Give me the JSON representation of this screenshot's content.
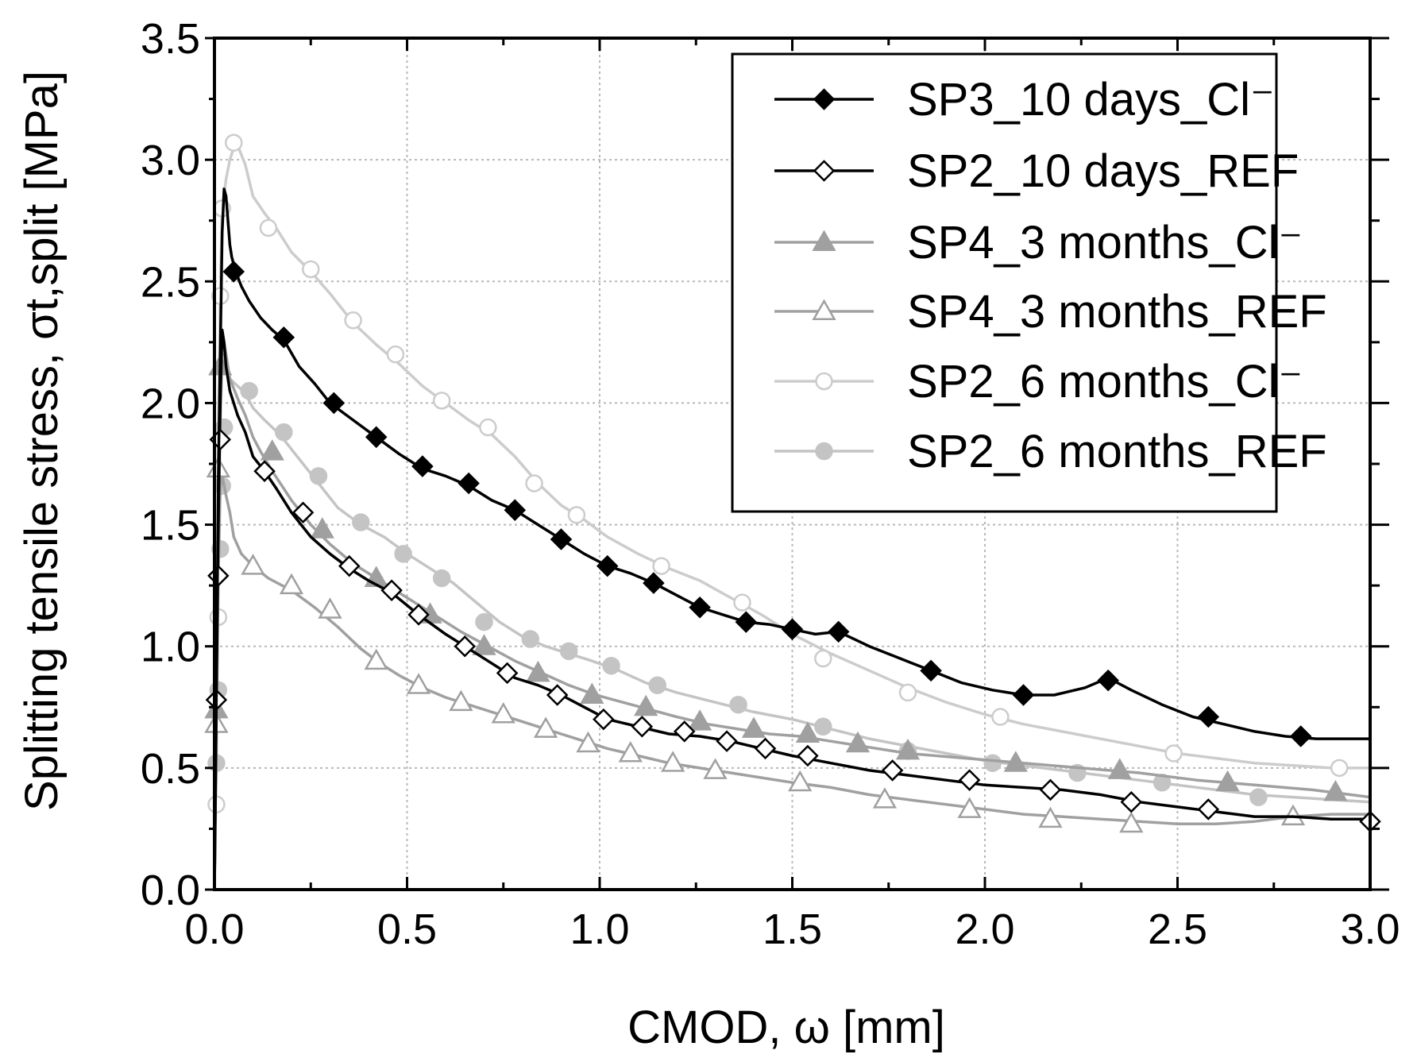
{
  "chart_data": {
    "type": "line",
    "title": "",
    "xlabel": "CMOD, ω [mm]",
    "ylabel": "Splitting tensile stress, σt,split [MPa]",
    "xlim": [
      0,
      3.0
    ],
    "ylim": [
      0,
      3.5
    ],
    "xticks": [
      "0.0",
      "0.5",
      "1.0",
      "1.5",
      "2.0",
      "2.5",
      "3.0"
    ],
    "yticks": [
      "0.0",
      "0.5",
      "1.0",
      "1.5",
      "2.0",
      "2.5",
      "3.0",
      "3.5"
    ],
    "grid": true,
    "legend_position": "top-right",
    "series": [
      {
        "name": "SP3_10 days_Cl⁻",
        "color": "#000000",
        "marker": "diamond",
        "filled": true,
        "x": [
          0,
          0.005,
          0.01,
          0.015,
          0.02,
          0.025,
          0.03,
          0.035,
          0.04,
          0.045,
          0.055,
          0.07,
          0.09,
          0.12,
          0.15,
          0.18,
          0.22,
          0.26,
          0.3,
          0.36,
          0.42,
          0.48,
          0.54,
          0.6,
          0.66,
          0.72,
          0.78,
          0.84,
          0.9,
          0.96,
          1.02,
          1.08,
          1.14,
          1.2,
          1.26,
          1.32,
          1.38,
          1.44,
          1.5,
          1.56,
          1.62,
          1.7,
          1.78,
          1.86,
          1.94,
          2.02,
          2.1,
          2.18,
          2.26,
          2.32,
          2.38,
          2.46,
          2.54,
          2.62,
          2.7,
          2.78,
          2.86,
          2.94,
          3.0
        ],
        "y": [
          0,
          0.8,
          1.7,
          2.2,
          2.7,
          2.88,
          2.85,
          2.75,
          2.65,
          2.6,
          2.54,
          2.48,
          2.42,
          2.35,
          2.3,
          2.26,
          2.15,
          2.08,
          2.0,
          1.93,
          1.86,
          1.79,
          1.73,
          1.7,
          1.66,
          1.6,
          1.56,
          1.5,
          1.44,
          1.38,
          1.33,
          1.3,
          1.26,
          1.21,
          1.16,
          1.13,
          1.1,
          1.09,
          1.07,
          1.05,
          1.06,
          1.0,
          0.95,
          0.9,
          0.85,
          0.82,
          0.8,
          0.8,
          0.83,
          0.87,
          0.82,
          0.76,
          0.71,
          0.68,
          0.65,
          0.63,
          0.62,
          0.62,
          0.62
        ],
        "marker_x": [
          0.05,
          0.18,
          0.31,
          0.42,
          0.54,
          0.66,
          0.78,
          0.9,
          1.02,
          1.14,
          1.26,
          1.38,
          1.5,
          1.62,
          1.86,
          2.1,
          2.32,
          2.58,
          2.82
        ],
        "marker_y": [
          2.54,
          2.27,
          2.0,
          1.86,
          1.74,
          1.67,
          1.56,
          1.44,
          1.33,
          1.26,
          1.16,
          1.1,
          1.07,
          1.06,
          0.9,
          0.8,
          0.86,
          0.71,
          0.63
        ]
      },
      {
        "name": "SP2_10 days_REF",
        "color": "#000000",
        "marker": "diamond",
        "filled": false,
        "x": [
          0,
          0.005,
          0.01,
          0.015,
          0.02,
          0.025,
          0.03,
          0.04,
          0.06,
          0.08,
          0.1,
          0.13,
          0.16,
          0.2,
          0.25,
          0.3,
          0.35,
          0.4,
          0.46,
          0.53,
          0.6,
          0.65,
          0.72,
          0.78,
          0.84,
          0.9,
          0.96,
          1.02,
          1.1,
          1.18,
          1.26,
          1.34,
          1.42,
          1.5,
          1.6,
          1.7,
          1.8,
          1.9,
          2.0,
          2.1,
          2.2,
          2.3,
          2.4,
          2.5,
          2.6,
          2.7,
          2.8,
          2.9,
          3.0
        ],
        "y": [
          0,
          0.8,
          1.5,
          2.0,
          2.3,
          2.25,
          2.15,
          2.05,
          1.95,
          1.88,
          1.78,
          1.72,
          1.65,
          1.55,
          1.45,
          1.38,
          1.32,
          1.27,
          1.22,
          1.13,
          1.05,
          1.0,
          0.93,
          0.87,
          0.84,
          0.8,
          0.75,
          0.7,
          0.67,
          0.64,
          0.63,
          0.61,
          0.58,
          0.55,
          0.52,
          0.49,
          0.47,
          0.45,
          0.43,
          0.42,
          0.41,
          0.39,
          0.36,
          0.34,
          0.32,
          0.3,
          0.3,
          0.29,
          0.29
        ],
        "marker_x": [
          0.005,
          0.01,
          0.015,
          0.13,
          0.23,
          0.35,
          0.46,
          0.53,
          0.65,
          0.76,
          0.89,
          1.01,
          1.11,
          1.22,
          1.33,
          1.43,
          1.54,
          1.76,
          1.96,
          2.17,
          2.38,
          2.58,
          3.0
        ],
        "marker_y": [
          0.78,
          1.29,
          1.85,
          1.72,
          1.55,
          1.33,
          1.23,
          1.13,
          1.0,
          0.89,
          0.8,
          0.7,
          0.67,
          0.65,
          0.61,
          0.58,
          0.55,
          0.49,
          0.45,
          0.41,
          0.36,
          0.33,
          0.28
        ]
      },
      {
        "name": "SP4_3 months_Cl⁻",
        "color": "#a0a0a0",
        "marker": "triangle",
        "filled": true,
        "x": [
          0,
          0.005,
          0.01,
          0.015,
          0.02,
          0.025,
          0.03,
          0.04,
          0.06,
          0.08,
          0.1,
          0.12,
          0.15,
          0.2,
          0.25,
          0.3,
          0.36,
          0.43,
          0.5,
          0.57,
          0.64,
          0.71,
          0.78,
          0.85,
          0.92,
          0.99,
          1.06,
          1.13,
          1.2,
          1.28,
          1.36,
          1.44,
          1.52,
          1.6,
          1.68,
          1.8,
          1.95,
          2.1,
          2.25,
          2.4,
          2.55,
          2.7,
          2.85,
          3.0
        ],
        "y": [
          0,
          0.7,
          1.5,
          2.05,
          2.28,
          2.25,
          2.2,
          2.1,
          2.02,
          1.95,
          1.86,
          1.8,
          1.72,
          1.6,
          1.5,
          1.42,
          1.34,
          1.27,
          1.2,
          1.13,
          1.06,
          1.0,
          0.94,
          0.89,
          0.84,
          0.8,
          0.77,
          0.74,
          0.71,
          0.68,
          0.66,
          0.64,
          0.63,
          0.61,
          0.59,
          0.56,
          0.54,
          0.52,
          0.5,
          0.48,
          0.45,
          0.43,
          0.41,
          0.38
        ],
        "marker_x": [
          0.005,
          0.015,
          0.15,
          0.28,
          0.42,
          0.56,
          0.7,
          0.84,
          0.98,
          1.12,
          1.26,
          1.4,
          1.54,
          1.67,
          1.8,
          2.08,
          2.35,
          2.63,
          2.91
        ],
        "marker_y": [
          0.74,
          2.15,
          1.8,
          1.48,
          1.28,
          1.13,
          1.0,
          0.89,
          0.8,
          0.75,
          0.69,
          0.66,
          0.64,
          0.6,
          0.57,
          0.52,
          0.49,
          0.44,
          0.4
        ]
      },
      {
        "name": "SP4_3 months_REF",
        "color": "#a0a0a0",
        "marker": "triangle",
        "filled": false,
        "x": [
          0,
          0.005,
          0.01,
          0.015,
          0.02,
          0.03,
          0.04,
          0.05,
          0.07,
          0.1,
          0.14,
          0.2,
          0.26,
          0.32,
          0.38,
          0.43,
          0.48,
          0.54,
          0.6,
          0.66,
          0.72,
          0.78,
          0.84,
          0.9,
          0.96,
          1.02,
          1.1,
          1.18,
          1.26,
          1.34,
          1.42,
          1.5,
          1.6,
          1.7,
          1.8,
          1.9,
          2.0,
          2.1,
          2.2,
          2.3,
          2.4,
          2.5,
          2.6,
          2.7,
          2.8,
          2.9,
          3.0
        ],
        "y": [
          0,
          0.65,
          1.3,
          1.65,
          1.7,
          1.62,
          1.55,
          1.45,
          1.38,
          1.33,
          1.28,
          1.23,
          1.16,
          1.08,
          0.99,
          0.93,
          0.88,
          0.83,
          0.79,
          0.76,
          0.73,
          0.7,
          0.67,
          0.64,
          0.61,
          0.58,
          0.55,
          0.52,
          0.5,
          0.48,
          0.46,
          0.44,
          0.42,
          0.39,
          0.37,
          0.35,
          0.33,
          0.31,
          0.3,
          0.29,
          0.28,
          0.27,
          0.27,
          0.28,
          0.3,
          0.31,
          0.31
        ],
        "marker_x": [
          0.005,
          0.01,
          0.1,
          0.2,
          0.3,
          0.42,
          0.53,
          0.64,
          0.75,
          0.86,
          0.97,
          1.08,
          1.19,
          1.3,
          1.52,
          1.74,
          1.96,
          2.17,
          2.38,
          2.8
        ],
        "marker_y": [
          0.68,
          1.73,
          1.33,
          1.25,
          1.15,
          0.94,
          0.84,
          0.77,
          0.72,
          0.66,
          0.6,
          0.56,
          0.52,
          0.49,
          0.44,
          0.37,
          0.33,
          0.29,
          0.27,
          0.3
        ]
      },
      {
        "name": "SP2_6 months_Cl⁻",
        "color": "#cccccc",
        "marker": "circle",
        "filled": false,
        "x": [
          0,
          0.005,
          0.01,
          0.015,
          0.02,
          0.03,
          0.04,
          0.05,
          0.06,
          0.08,
          0.1,
          0.13,
          0.16,
          0.2,
          0.25,
          0.3,
          0.36,
          0.42,
          0.48,
          0.54,
          0.6,
          0.66,
          0.72,
          0.78,
          0.84,
          0.9,
          0.96,
          1.02,
          1.1,
          1.18,
          1.26,
          1.34,
          1.42,
          1.5,
          1.6,
          1.7,
          1.8,
          1.9,
          2.0,
          2.1,
          2.2,
          2.3,
          2.4,
          2.5,
          2.6,
          2.7,
          2.8,
          2.9,
          3.0
        ],
        "y": [
          0,
          0.8,
          1.8,
          2.45,
          2.8,
          2.92,
          3.0,
          3.05,
          3.06,
          2.98,
          2.85,
          2.78,
          2.72,
          2.62,
          2.54,
          2.45,
          2.33,
          2.24,
          2.16,
          2.07,
          2.0,
          1.93,
          1.87,
          1.78,
          1.67,
          1.58,
          1.52,
          1.45,
          1.38,
          1.32,
          1.27,
          1.2,
          1.13,
          1.05,
          0.97,
          0.9,
          0.83,
          0.77,
          0.72,
          0.68,
          0.65,
          0.62,
          0.59,
          0.56,
          0.54,
          0.52,
          0.51,
          0.5,
          0.5
        ],
        "marker_x": [
          0.005,
          0.01,
          0.015,
          0.02,
          0.05,
          0.14,
          0.25,
          0.36,
          0.47,
          0.59,
          0.71,
          0.83,
          0.94,
          1.16,
          1.37,
          1.58,
          1.8,
          2.04,
          2.49,
          2.92
        ],
        "marker_y": [
          0.35,
          1.12,
          2.44,
          2.8,
          3.07,
          2.72,
          2.55,
          2.34,
          2.2,
          2.01,
          1.9,
          1.67,
          1.54,
          1.33,
          1.18,
          0.95,
          0.81,
          0.71,
          0.56,
          0.5
        ]
      },
      {
        "name": "SP2_6 months_REF",
        "color": "#c4c4c4",
        "marker": "circle",
        "filled": true,
        "x": [
          0,
          0.005,
          0.01,
          0.015,
          0.02,
          0.025,
          0.03,
          0.04,
          0.06,
          0.08,
          0.1,
          0.13,
          0.17,
          0.22,
          0.27,
          0.32,
          0.38,
          0.44,
          0.5,
          0.56,
          0.62,
          0.68,
          0.74,
          0.8,
          0.86,
          0.92,
          0.98,
          1.05,
          1.12,
          1.2,
          1.3,
          1.4,
          1.5,
          1.6,
          1.7,
          1.8,
          1.9,
          2.0,
          2.1,
          2.2,
          2.3,
          2.4,
          2.5,
          2.6,
          2.7,
          2.8,
          2.9,
          3.0
        ],
        "y": [
          0,
          0.5,
          1.4,
          1.9,
          2.18,
          2.2,
          2.15,
          2.1,
          2.07,
          2.04,
          1.98,
          1.93,
          1.87,
          1.77,
          1.67,
          1.57,
          1.5,
          1.45,
          1.38,
          1.32,
          1.26,
          1.18,
          1.1,
          1.04,
          1.0,
          0.97,
          0.94,
          0.9,
          0.85,
          0.81,
          0.77,
          0.73,
          0.7,
          0.66,
          0.62,
          0.59,
          0.56,
          0.53,
          0.51,
          0.49,
          0.47,
          0.45,
          0.43,
          0.41,
          0.39,
          0.38,
          0.37,
          0.36
        ],
        "marker_x": [
          0.005,
          0.01,
          0.015,
          0.02,
          0.025,
          0.09,
          0.18,
          0.27,
          0.38,
          0.49,
          0.59,
          0.7,
          0.82,
          0.92,
          1.03,
          1.15,
          1.36,
          1.58,
          1.8,
          2.02,
          2.24,
          2.46,
          2.71
        ],
        "marker_y": [
          0.52,
          0.82,
          1.4,
          1.66,
          1.9,
          2.05,
          1.88,
          1.7,
          1.51,
          1.38,
          1.28,
          1.1,
          1.03,
          0.98,
          0.92,
          0.84,
          0.76,
          0.67,
          0.57,
          0.52,
          0.48,
          0.44,
          0.38
        ]
      }
    ]
  }
}
